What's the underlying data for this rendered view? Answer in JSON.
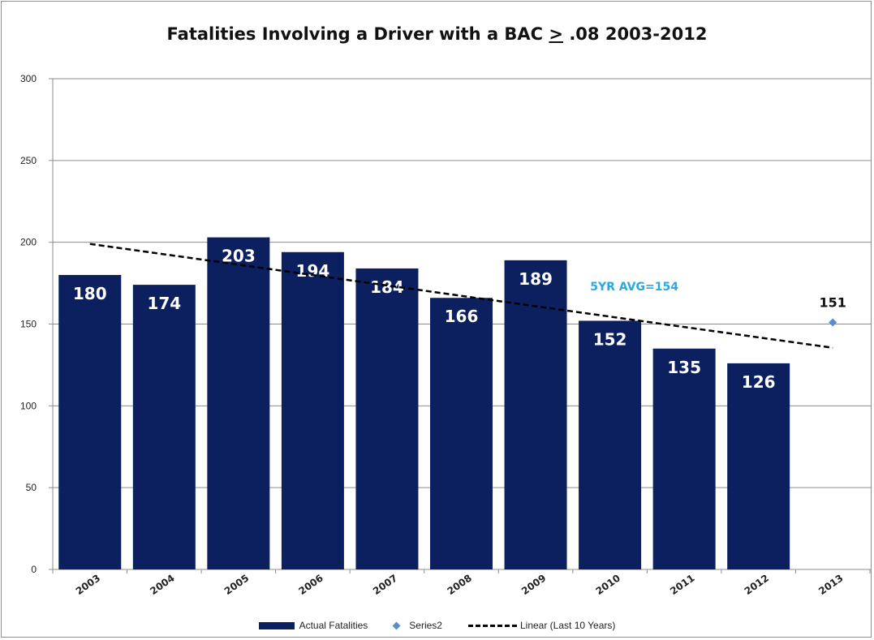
{
  "chart_data": {
    "type": "bar",
    "title_prefix": "Fatalities Involving a Driver with a BAC",
    "title_ge": ">",
    "title_suffix": ".08 2003-2012",
    "categories": [
      "2003",
      "2004",
      "2005",
      "2006",
      "2007",
      "2008",
      "2009",
      "2010",
      "2011",
      "2012",
      "2013"
    ],
    "series": [
      {
        "name": "Actual Fatalities",
        "type": "bar",
        "color": "#0c2060",
        "values": [
          180,
          174,
          203,
          194,
          184,
          166,
          189,
          152,
          135,
          126,
          null
        ]
      },
      {
        "name": "Series2",
        "type": "scatter",
        "color": "#5b8cd1",
        "values": [
          null,
          null,
          null,
          null,
          null,
          null,
          null,
          null,
          null,
          null,
          151
        ]
      },
      {
        "name": "Linear (Last 10 Years)",
        "type": "trendline",
        "color": "#000000",
        "start": {
          "x": "2003",
          "y": 199
        },
        "end": {
          "x": "2013",
          "y": 135.5
        }
      }
    ],
    "data_labels": [
      "180",
      "174",
      "203",
      "194",
      "184",
      "166",
      "189",
      "152",
      "135",
      "126",
      "151"
    ],
    "annotation": {
      "text": "5YR AVG=154",
      "color": "#29a9e0",
      "near": "2010"
    },
    "ylim": [
      0,
      300
    ],
    "yticks": [
      0,
      50,
      100,
      150,
      200,
      250,
      300
    ],
    "grid": true,
    "legend_position": "bottom"
  }
}
